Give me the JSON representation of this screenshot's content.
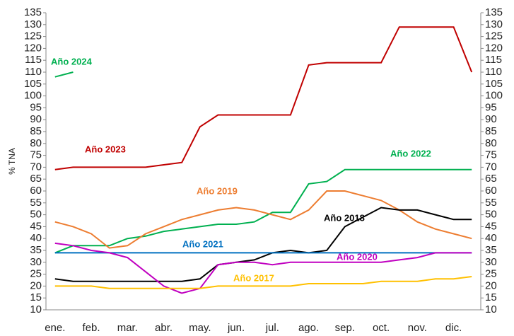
{
  "chart_data": {
    "type": "line",
    "ylabel": "% TNA",
    "categories": [
      "ene.",
      null,
      "feb.",
      null,
      "mar.",
      null,
      "abr.",
      null,
      "may.",
      null,
      "jun.",
      null,
      "jul.",
      null,
      "ago.",
      null,
      "sep.",
      null,
      "oct.",
      null,
      "nov.",
      null,
      "dic.",
      null
    ],
    "ylim": [
      10,
      135
    ],
    "yticks": [
      10,
      15,
      20,
      25,
      30,
      35,
      40,
      45,
      50,
      55,
      60,
      65,
      70,
      75,
      80,
      85,
      90,
      95,
      100,
      105,
      110,
      115,
      120,
      125,
      130,
      135
    ],
    "grid": false,
    "series": [
      {
        "name": "Año 2024",
        "color": "#00b050",
        "values": [
          108,
          110,
          null,
          null,
          null,
          null,
          null,
          null,
          null,
          null,
          null,
          null,
          null,
          null,
          null,
          null,
          null,
          null,
          null,
          null,
          null,
          null,
          null,
          null
        ]
      },
      {
        "name": "Año 2023",
        "color": "#c00000",
        "values": [
          69,
          70,
          70,
          70,
          70,
          70,
          71,
          72,
          87,
          92,
          92,
          92,
          92,
          92,
          113,
          114,
          114,
          114,
          114,
          129,
          129,
          129,
          129,
          110
        ]
      },
      {
        "name": "Año 2022",
        "color": "#00b050",
        "values": [
          34,
          37,
          37,
          37,
          40,
          41,
          43,
          44,
          45,
          46,
          46,
          47,
          51,
          51,
          63,
          64,
          69,
          69,
          69,
          69,
          69,
          69,
          69,
          69
        ]
      },
      {
        "name": "Año 2019",
        "color": "#ed7d31",
        "values": [
          47,
          45,
          42,
          36,
          37,
          42,
          45,
          48,
          50,
          52,
          53,
          52,
          50,
          48,
          52,
          60,
          60,
          58,
          56,
          52,
          47,
          44,
          42,
          40
        ]
      },
      {
        "name": "Año 2018",
        "color": "#000000",
        "values": [
          23,
          22,
          22,
          22,
          22,
          22,
          22,
          22,
          23,
          29,
          30,
          31,
          34,
          35,
          34,
          35,
          45,
          49,
          53,
          52,
          52,
          50,
          48,
          48
        ]
      },
      {
        "name": "Año 2021",
        "color": "#0070c0",
        "values": [
          34,
          34,
          34,
          34,
          34,
          34,
          34,
          34,
          34,
          34,
          34,
          34,
          34,
          34,
          34,
          34,
          34,
          34,
          34,
          34,
          34,
          34,
          34,
          34
        ]
      },
      {
        "name": "Año 2020",
        "color": "#c000c0",
        "values": [
          38,
          37,
          35,
          34,
          32,
          26,
          20,
          17,
          19,
          29,
          30,
          30,
          29,
          30,
          30,
          30,
          30,
          30,
          30,
          31,
          32,
          34,
          34,
          34
        ]
      },
      {
        "name": "Año 2017",
        "color": "#ffc000",
        "values": [
          20,
          20,
          20,
          19,
          19,
          19,
          19,
          19,
          19,
          20,
          20,
          20,
          20,
          20,
          21,
          21,
          21,
          21,
          22,
          22,
          22,
          23,
          23,
          24
        ]
      }
    ]
  }
}
